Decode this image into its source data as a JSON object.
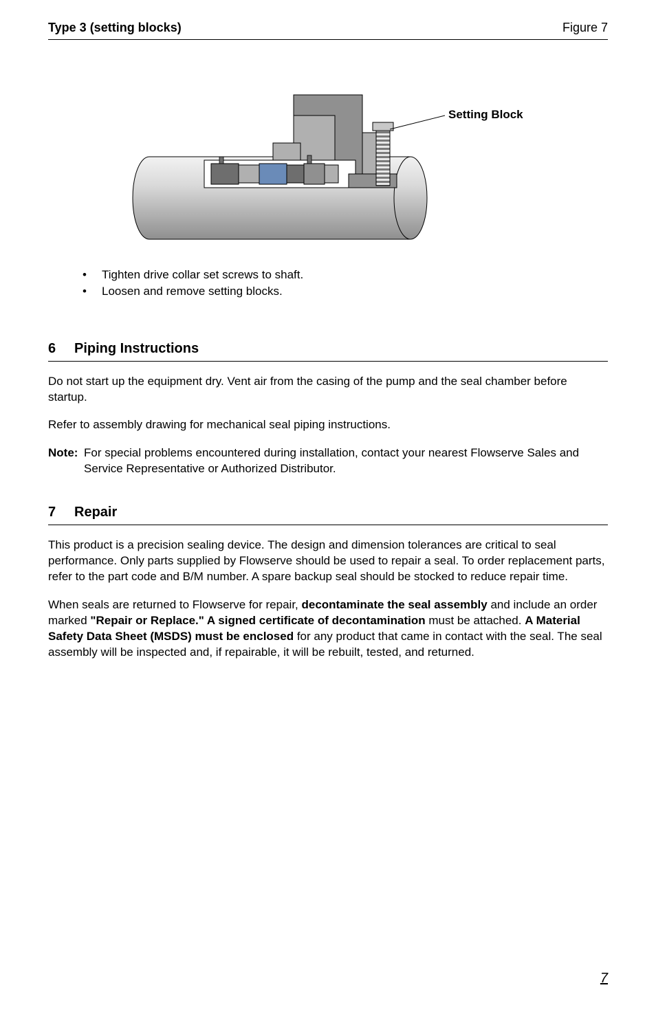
{
  "figure": {
    "title": "Type 3  (setting blocks)",
    "label": "Figure 7",
    "callout": "Setting Block",
    "diagram": {
      "background_color": "#ffffff",
      "shaft_gradient_top": "#d9d9d9",
      "shaft_gradient_bottom": "#8f8f8f",
      "block_gray_light": "#b0b0b0",
      "block_gray_mid": "#909090",
      "block_gray_dark": "#6e6e6e",
      "accent_blue": "#6a8bb8",
      "screw_thread_light": "#e8e8e8",
      "screw_thread_dark": "#7a7a7a",
      "outline": "#000000"
    }
  },
  "bullets": [
    "Tighten drive collar set screws to shaft.",
    "Loosen and remove setting blocks."
  ],
  "sections": [
    {
      "num": "6",
      "title": "Piping Instructions",
      "paragraphs": [
        "Do not start up the equipment dry. Vent air from the casing of the pump and the seal chamber before startup.",
        "Refer to assembly drawing for mechanical seal piping instructions."
      ],
      "note": {
        "label": "Note:",
        "text": "For special problems encountered during installation, contact your nearest Flowserve Sales and Service Representative or Authorized Distributor."
      }
    },
    {
      "num": "7",
      "title": "Repair",
      "rich_paragraphs": [
        [
          {
            "t": "This product is a precision sealing device. The design and dimension tolerances are critical to seal performance. Only parts supplied by Flowserve should be used to repair a seal. To order replacement parts, refer to the part code and B/M number. A spare backup seal should be stocked to reduce repair time.",
            "b": false
          }
        ],
        [
          {
            "t": "When seals are returned to Flowserve for repair, ",
            "b": false
          },
          {
            "t": "decontaminate the seal assembly",
            "b": true
          },
          {
            "t": " and include an order marked ",
            "b": false
          },
          {
            "t": "\"Repair or Replace.\"  A signed certificate of decontamination",
            "b": true
          },
          {
            "t": " must be attached. ",
            "b": false
          },
          {
            "t": "A Material Safety Data Sheet (MSDS) must be enclosed",
            "b": true
          },
          {
            "t": " for any product that came in contact with the seal. The seal assembly will be inspected and, if repairable, it will be rebuilt, tested, and returned.",
            "b": false
          }
        ]
      ]
    }
  ],
  "page_number": "7"
}
